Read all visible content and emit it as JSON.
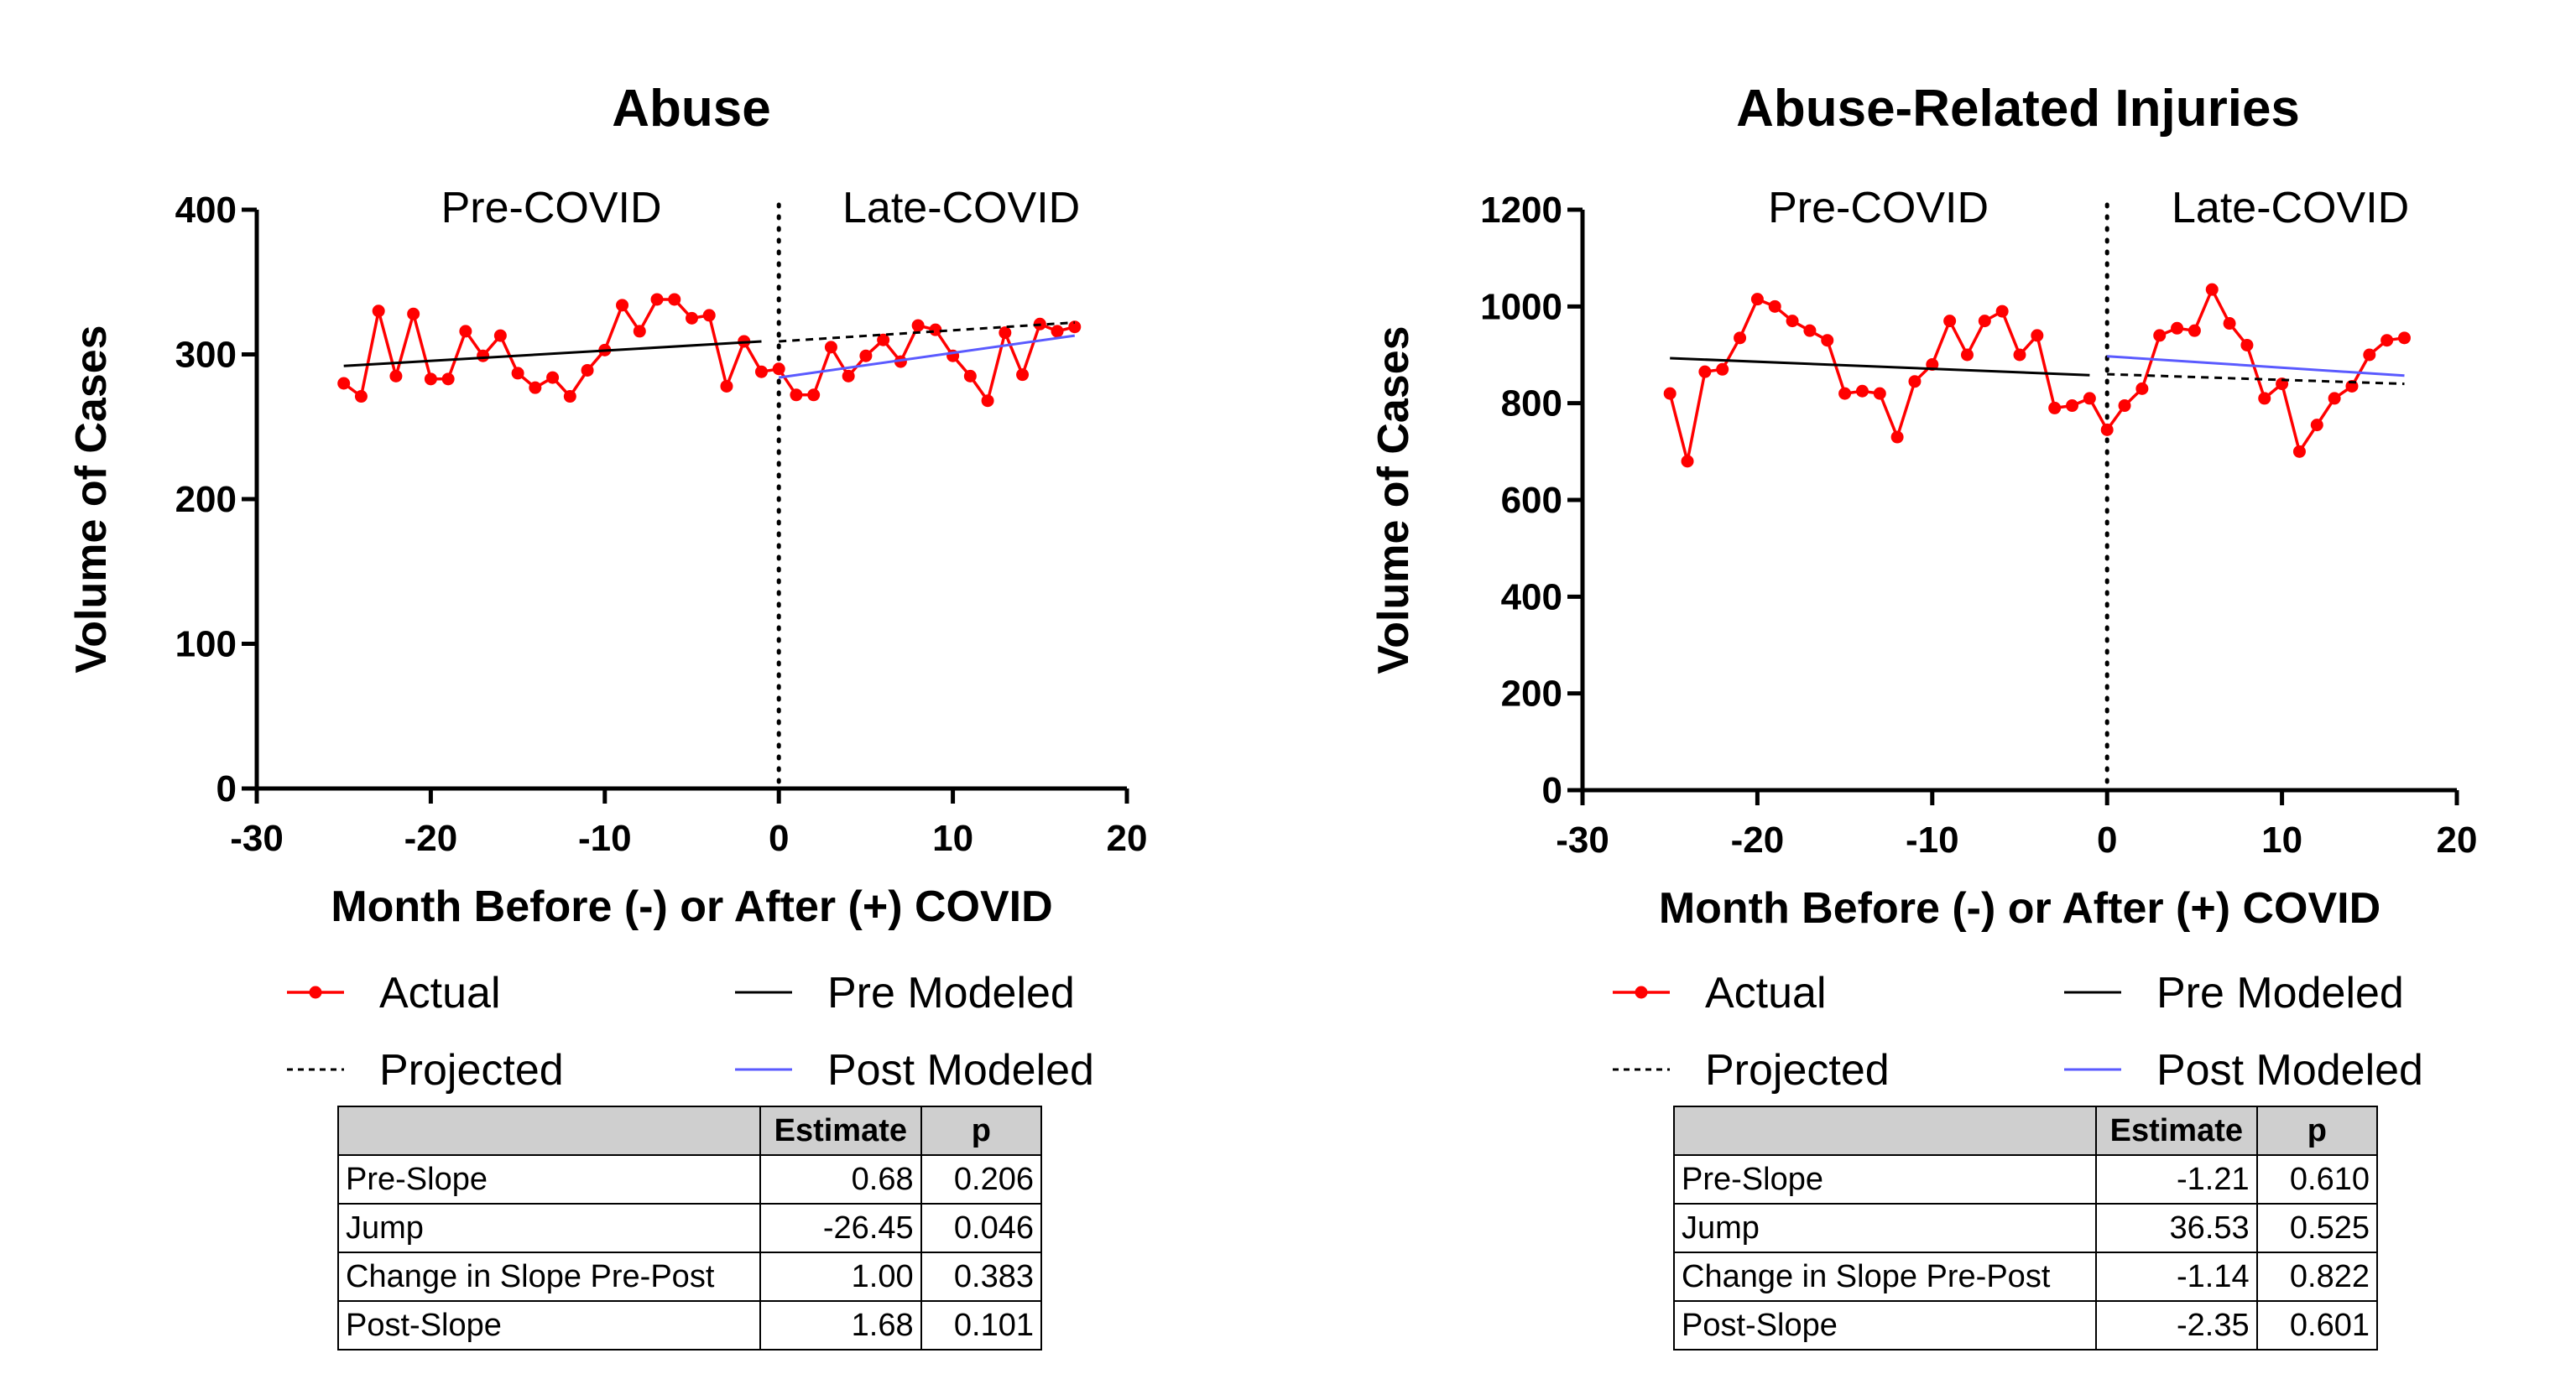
{
  "colors": {
    "actual": "#ff0000",
    "pre_modeled": "#000000",
    "post_modeled": "#5a5aff",
    "projected": "#000000",
    "table_header_bg": "#cfcfcf"
  },
  "chart_data": [
    {
      "type": "line",
      "title": "Abuse",
      "xlabel": "Month Before (-) or After (+) COVID",
      "ylabel": "Volume of Cases",
      "xlim": [
        -30,
        20
      ],
      "ylim": [
        0,
        400
      ],
      "xticks": [
        -30,
        -20,
        -10,
        0,
        10,
        20
      ],
      "yticks": [
        0,
        100,
        200,
        300,
        400
      ],
      "region_labels": [
        "Pre-COVID",
        "Late-COVID"
      ],
      "divider_x": 0,
      "series": [
        {
          "name": "Actual",
          "style": "red-dots",
          "x": [
            -25,
            -24,
            -23,
            -22,
            -21,
            -20,
            -19,
            -18,
            -17,
            -16,
            -15,
            -14,
            -13,
            -12,
            -11,
            -10,
            -9,
            -8,
            -7,
            -6,
            -5,
            -4,
            -3,
            -2,
            -1,
            0,
            1,
            2,
            3,
            4,
            5,
            6,
            7,
            8,
            9,
            10,
            11,
            12,
            13,
            14,
            15,
            16,
            17
          ],
          "y": [
            280,
            271,
            330,
            285,
            328,
            283,
            283,
            316,
            299,
            313,
            287,
            277,
            284,
            271,
            289,
            303,
            334,
            316,
            338,
            338,
            325,
            327,
            278,
            309,
            288,
            290,
            272,
            272,
            305,
            285,
            299,
            310,
            295,
            320,
            317,
            299,
            285,
            268,
            315,
            286,
            321,
            316,
            319
          ]
        },
        {
          "name": "Pre Modeled",
          "style": "solid-black",
          "x": [
            -25,
            -1
          ],
          "y": [
            292,
            309
          ]
        },
        {
          "name": "Projected",
          "style": "dashed-black",
          "x": [
            0,
            17
          ],
          "y": [
            309,
            322
          ]
        },
        {
          "name": "Post Modeled",
          "style": "solid-blue",
          "x": [
            0,
            17
          ],
          "y": [
            284,
            313
          ]
        }
      ],
      "legend": [
        "Actual",
        "Pre Modeled",
        "Projected",
        "Post Modeled"
      ],
      "table": {
        "headers": [
          "",
          "Estimate",
          "p"
        ],
        "rows": [
          [
            "Pre-Slope",
            "0.68",
            "0.206"
          ],
          [
            "Jump",
            "-26.45",
            "0.046"
          ],
          [
            "Change in Slope Pre-Post",
            "1.00",
            "0.383"
          ],
          [
            "Post-Slope",
            "1.68",
            "0.101"
          ]
        ]
      }
    },
    {
      "type": "line",
      "title": "Abuse-Related Injuries",
      "xlabel": "Month Before (-) or After (+) COVID",
      "ylabel": "Volume of Cases",
      "xlim": [
        -30,
        20
      ],
      "ylim": [
        0,
        1200
      ],
      "xticks": [
        -30,
        -20,
        -10,
        0,
        10,
        20
      ],
      "yticks": [
        0,
        200,
        400,
        600,
        800,
        1000,
        1200
      ],
      "region_labels": [
        "Pre-COVID",
        "Late-COVID"
      ],
      "divider_x": 0,
      "series": [
        {
          "name": "Actual",
          "style": "red-dots",
          "x": [
            -25,
            -24,
            -23,
            -22,
            -21,
            -20,
            -19,
            -18,
            -17,
            -16,
            -15,
            -14,
            -13,
            -12,
            -11,
            -10,
            -9,
            -8,
            -7,
            -6,
            -5,
            -4,
            -3,
            -2,
            -1,
            0,
            1,
            2,
            3,
            4,
            5,
            6,
            7,
            8,
            9,
            10,
            11,
            12,
            13,
            14,
            15,
            16,
            17
          ],
          "y": [
            820,
            680,
            865,
            870,
            935,
            1015,
            1000,
            970,
            950,
            930,
            820,
            825,
            820,
            730,
            845,
            880,
            970,
            900,
            970,
            990,
            900,
            940,
            790,
            795,
            810,
            745,
            795,
            830,
            940,
            955,
            950,
            1035,
            965,
            920,
            810,
            840,
            700,
            755,
            810,
            835,
            900,
            930,
            935
          ]
        },
        {
          "name": "Pre Modeled",
          "style": "solid-black",
          "x": [
            -25,
            -1
          ],
          "y": [
            893,
            858
          ]
        },
        {
          "name": "Projected",
          "style": "dashed-black",
          "x": [
            0,
            17
          ],
          "y": [
            860,
            840
          ]
        },
        {
          "name": "Post Modeled",
          "style": "solid-blue",
          "x": [
            0,
            17
          ],
          "y": [
            897,
            857
          ]
        }
      ],
      "legend": [
        "Actual",
        "Pre Modeled",
        "Projected",
        "Post Modeled"
      ],
      "table": {
        "headers": [
          "",
          "Estimate",
          "p"
        ],
        "rows": [
          [
            "Pre-Slope",
            "-1.21",
            "0.610"
          ],
          [
            "Jump",
            "36.53",
            "0.525"
          ],
          [
            "Change in Slope Pre-Post",
            "-1.14",
            "0.822"
          ],
          [
            "Post-Slope",
            "-2.35",
            "0.601"
          ]
        ]
      }
    }
  ]
}
